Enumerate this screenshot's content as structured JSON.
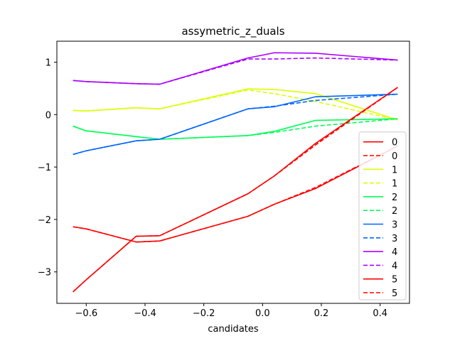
{
  "chart_data": {
    "type": "line",
    "title": "assymetric_z_duals",
    "xlabel": "candidates",
    "ylabel": "",
    "xlim": [
      -0.7,
      0.5
    ],
    "ylim": [
      -3.6,
      1.4
    ],
    "xticks": [
      -0.6,
      -0.4,
      -0.2,
      0.0,
      0.2,
      0.4
    ],
    "xtick_labels": [
      "−0.6",
      "−0.4",
      "−0.2",
      "0.0",
      "0.2",
      "0.4"
    ],
    "yticks": [
      -3,
      -2,
      -1,
      0,
      1
    ],
    "ytick_labels": [
      "−3",
      "−2",
      "−1",
      "0",
      "1"
    ],
    "grid": false,
    "legend_position": "lower-right",
    "series": [
      {
        "name": "0",
        "color": "#ff0000",
        "dash": false,
        "x": [
          -0.645,
          -0.6,
          -0.43,
          -0.35,
          -0.05,
          0.04,
          0.18,
          0.46
        ],
        "y": [
          -2.14,
          -2.18,
          -2.43,
          -2.41,
          -1.94,
          -1.71,
          -1.41,
          -0.6
        ]
      },
      {
        "name": "0",
        "color": "#ff0000",
        "dash": true,
        "x": [
          -0.645,
          -0.6,
          -0.43,
          -0.35,
          -0.05,
          0.04,
          0.18,
          0.46
        ],
        "y": [
          -2.14,
          -2.18,
          -2.43,
          -2.41,
          -1.94,
          -1.71,
          -1.39,
          -0.6
        ]
      },
      {
        "name": "1",
        "color": "#ddff00",
        "dash": false,
        "x": [
          -0.645,
          -0.6,
          -0.43,
          -0.35,
          -0.05,
          0.04,
          0.18,
          0.46
        ],
        "y": [
          0.08,
          0.07,
          0.13,
          0.11,
          0.49,
          0.48,
          0.4,
          -0.1
        ]
      },
      {
        "name": "1",
        "color": "#ddff00",
        "dash": true,
        "x": [
          -0.645,
          -0.6,
          -0.43,
          -0.35,
          -0.05,
          0.04,
          0.18,
          0.46
        ],
        "y": [
          0.08,
          0.07,
          0.13,
          0.11,
          0.47,
          0.4,
          0.25,
          -0.1
        ]
      },
      {
        "name": "2",
        "color": "#00ff55",
        "dash": false,
        "x": [
          -0.645,
          -0.6,
          -0.43,
          -0.35,
          -0.05,
          0.04,
          0.18,
          0.46
        ],
        "y": [
          -0.22,
          -0.31,
          -0.42,
          -0.47,
          -0.4,
          -0.32,
          -0.11,
          -0.08
        ]
      },
      {
        "name": "2",
        "color": "#00ff55",
        "dash": true,
        "x": [
          -0.645,
          -0.6,
          -0.43,
          -0.35,
          -0.05,
          0.04,
          0.18,
          0.46
        ],
        "y": [
          -0.22,
          -0.31,
          -0.42,
          -0.47,
          -0.4,
          -0.34,
          -0.22,
          -0.08
        ]
      },
      {
        "name": "3",
        "color": "#0066ff",
        "dash": false,
        "x": [
          -0.645,
          -0.6,
          -0.43,
          -0.35,
          -0.05,
          0.04,
          0.18,
          0.46
        ],
        "y": [
          -0.76,
          -0.69,
          -0.5,
          -0.47,
          0.11,
          0.15,
          0.34,
          0.39
        ]
      },
      {
        "name": "3",
        "color": "#0066ff",
        "dash": true,
        "x": [
          -0.645,
          -0.6,
          -0.43,
          -0.35,
          -0.05,
          0.04,
          0.18,
          0.46
        ],
        "y": [
          -0.76,
          -0.69,
          -0.5,
          -0.47,
          0.11,
          0.16,
          0.27,
          0.39
        ]
      },
      {
        "name": "4",
        "color": "#aa00ff",
        "dash": false,
        "x": [
          -0.645,
          -0.6,
          -0.43,
          -0.35,
          -0.05,
          0.04,
          0.18,
          0.46
        ],
        "y": [
          0.65,
          0.63,
          0.59,
          0.58,
          1.08,
          1.18,
          1.17,
          1.04
        ]
      },
      {
        "name": "4",
        "color": "#aa00ff",
        "dash": true,
        "x": [
          -0.645,
          -0.6,
          -0.43,
          -0.35,
          -0.05,
          0.04,
          0.18,
          0.46
        ],
        "y": [
          0.65,
          0.63,
          0.59,
          0.58,
          1.06,
          1.06,
          1.08,
          1.04
        ]
      },
      {
        "name": "5",
        "color": "#ff0000",
        "dash": false,
        "x": [
          -0.645,
          -0.6,
          -0.43,
          -0.35,
          -0.05,
          0.04,
          0.18,
          0.46
        ],
        "y": [
          -3.38,
          -3.15,
          -2.32,
          -2.31,
          -1.51,
          -1.17,
          -0.55,
          0.52
        ]
      },
      {
        "name": "5",
        "color": "#ff0000",
        "dash": true,
        "x": [
          -0.645,
          -0.6,
          -0.43,
          -0.35,
          -0.05,
          0.04,
          0.18,
          0.46
        ],
        "y": [
          -3.38,
          -3.15,
          -2.32,
          -2.31,
          -1.51,
          -1.17,
          -0.58,
          0.52
        ]
      }
    ]
  }
}
